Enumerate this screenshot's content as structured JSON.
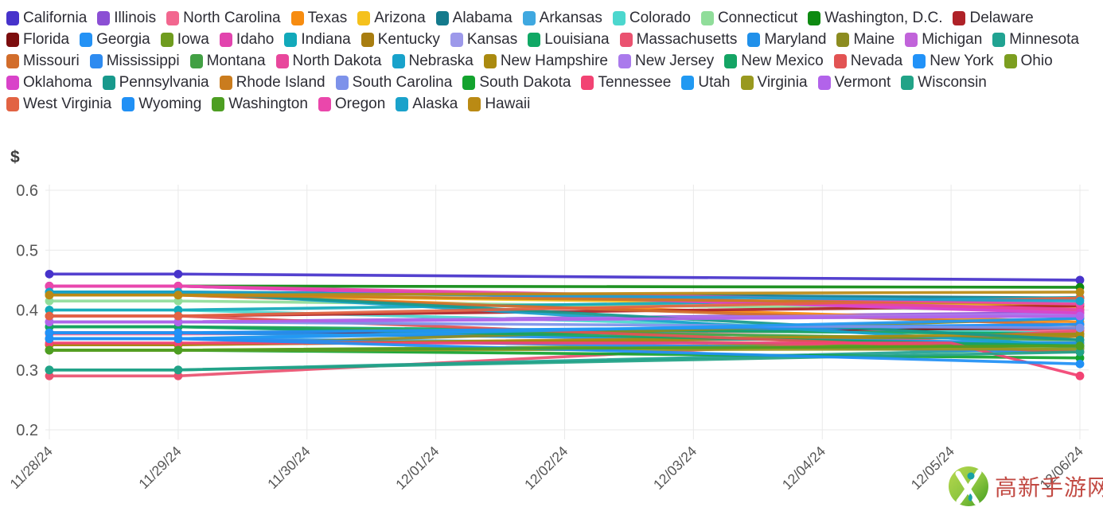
{
  "y_axis": {
    "title": "$",
    "tick_labels": [
      "0.6",
      "0.5",
      "0.4",
      "0.3",
      "0.2"
    ],
    "tick_values": [
      0.6,
      0.5,
      0.4,
      0.3,
      0.2
    ],
    "min": 0.2,
    "max": 0.6
  },
  "x_axis": {
    "labels": [
      "11/28/24",
      "11/29/24",
      "11/30/24",
      "12/01/24",
      "12/02/24",
      "12/03/24",
      "12/04/24",
      "12/05/24",
      "12/06/24"
    ]
  },
  "watermark": {
    "text": "高新手游网",
    "logo_green_light": "#a6cf3e",
    "logo_green_dark": "#4ba318",
    "logo_teal": "#18a1a5",
    "text_color": "#c24b44"
  },
  "chart_data": {
    "type": "line",
    "title": "",
    "xlabel": "",
    "ylabel": "$",
    "x": [
      "11/28/24",
      "11/29/24",
      "11/30/24",
      "12/01/24",
      "12/02/24",
      "12/03/24",
      "12/04/24",
      "12/05/24",
      "12/06/24"
    ],
    "ylim": [
      0.2,
      0.6
    ],
    "grid": true,
    "legend_position": "top",
    "marker_indices": [
      0,
      1,
      8
    ],
    "series": [
      {
        "name": "California",
        "color": "#4733cb",
        "points": [
          [
            0,
            0.46
          ],
          [
            1,
            0.46
          ],
          [
            8,
            0.45
          ]
        ]
      },
      {
        "name": "Illinois",
        "color": "#8b4fd4",
        "points": [
          [
            0,
            0.38
          ],
          [
            1,
            0.38
          ],
          [
            8,
            0.396
          ]
        ]
      },
      {
        "name": "North Carolina",
        "color": "#f2678f",
        "points": [
          [
            0,
            0.36
          ],
          [
            1,
            0.36
          ],
          [
            8,
            0.366
          ]
        ]
      },
      {
        "name": "Texas",
        "color": "#f78c10",
        "points": [
          [
            0,
            0.425
          ],
          [
            1,
            0.425
          ],
          [
            8,
            0.38
          ]
        ]
      },
      {
        "name": "Arizona",
        "color": "#f5c11c",
        "points": [
          [
            0,
            0.425
          ],
          [
            1,
            0.425
          ],
          [
            8,
            0.405
          ]
        ]
      },
      {
        "name": "Alabama",
        "color": "#147a8c",
        "points": [
          [
            0,
            0.43
          ],
          [
            1,
            0.43
          ],
          [
            8,
            0.42
          ]
        ]
      },
      {
        "name": "Arkansas",
        "color": "#3fa8e0",
        "points": [
          [
            0,
            0.352
          ],
          [
            1,
            0.352
          ],
          [
            8,
            0.34
          ]
        ]
      },
      {
        "name": "Colorado",
        "color": "#4cd7ce",
        "points": [
          [
            0,
            0.4
          ],
          [
            1,
            0.4
          ],
          [
            8,
            0.36
          ]
        ]
      },
      {
        "name": "Connecticut",
        "color": "#90dd9a",
        "points": [
          [
            0,
            0.415
          ],
          [
            1,
            0.415
          ],
          [
            8,
            0.4
          ]
        ]
      },
      {
        "name": "Washington, D.C.",
        "color": "#0e8a12",
        "points": [
          [
            0,
            0.44
          ],
          [
            1,
            0.44
          ],
          [
            8,
            0.438
          ]
        ]
      },
      {
        "name": "Delaware",
        "color": "#af2228",
        "points": [
          [
            0,
            0.39
          ],
          [
            1,
            0.39
          ],
          [
            8,
            0.407
          ]
        ]
      },
      {
        "name": "Florida",
        "color": "#7c0d0e",
        "points": [
          [
            0,
            0.362
          ],
          [
            1,
            0.362
          ],
          [
            8,
            0.37
          ]
        ]
      },
      {
        "name": "Georgia",
        "color": "#2492f5",
        "points": [
          [
            0,
            0.352
          ],
          [
            1,
            0.352
          ],
          [
            8,
            0.376
          ]
        ]
      },
      {
        "name": "Iowa",
        "color": "#6f9c1f",
        "points": [
          [
            0,
            0.333
          ],
          [
            1,
            0.333
          ],
          [
            8,
            0.345
          ]
        ]
      },
      {
        "name": "Idaho",
        "color": "#e244ae",
        "points": [
          [
            0,
            0.44
          ],
          [
            1,
            0.44
          ],
          [
            8,
            0.401
          ]
        ]
      },
      {
        "name": "Indiana",
        "color": "#12a9ba",
        "points": [
          [
            0,
            0.4
          ],
          [
            1,
            0.4
          ],
          [
            8,
            0.421
          ]
        ]
      },
      {
        "name": "Kentucky",
        "color": "#a87d10",
        "points": [
          [
            0,
            0.342
          ],
          [
            1,
            0.342
          ],
          [
            8,
            0.356
          ]
        ]
      },
      {
        "name": "Kansas",
        "color": "#9d99ea",
        "points": [
          [
            0,
            0.38
          ],
          [
            1,
            0.38
          ],
          [
            8,
            0.39
          ]
        ]
      },
      {
        "name": "Louisiana",
        "color": "#10a865",
        "points": [
          [
            0,
            0.372
          ],
          [
            1,
            0.372
          ],
          [
            8,
            0.36
          ]
        ]
      },
      {
        "name": "Massachusetts",
        "color": "#ea5270",
        "points": [
          [
            0,
            0.29
          ],
          [
            1,
            0.29
          ],
          [
            8,
            0.365
          ]
        ]
      },
      {
        "name": "Maryland",
        "color": "#2090ea",
        "points": [
          [
            0,
            0.362
          ],
          [
            1,
            0.362
          ],
          [
            8,
            0.345
          ]
        ]
      },
      {
        "name": "Maine",
        "color": "#8c8c20",
        "points": [
          [
            0,
            0.342
          ],
          [
            1,
            0.342
          ],
          [
            8,
            0.386
          ]
        ]
      },
      {
        "name": "Michigan",
        "color": "#c163da",
        "points": [
          [
            0,
            0.44
          ],
          [
            1,
            0.44
          ],
          [
            8,
            0.396
          ]
        ]
      },
      {
        "name": "Minnesota",
        "color": "#21a392",
        "points": [
          [
            0,
            0.3
          ],
          [
            1,
            0.3
          ],
          [
            8,
            0.336
          ]
        ]
      },
      {
        "name": "Missouri",
        "color": "#d26d2b",
        "points": [
          [
            0,
            0.425
          ],
          [
            1,
            0.425
          ],
          [
            8,
            0.375
          ]
        ]
      },
      {
        "name": "Mississippi",
        "color": "#2e8bf0",
        "points": [
          [
            0,
            0.352
          ],
          [
            1,
            0.352
          ],
          [
            8,
            0.33
          ]
        ]
      },
      {
        "name": "Montana",
        "color": "#42a044",
        "points": [
          [
            0,
            0.372
          ],
          [
            1,
            0.372
          ],
          [
            8,
            0.35
          ]
        ]
      },
      {
        "name": "North Dakota",
        "color": "#e8479c",
        "points": [
          [
            0,
            0.44
          ],
          [
            1,
            0.44
          ],
          [
            8,
            0.4
          ]
        ]
      },
      {
        "name": "Nebraska",
        "color": "#18a2cb",
        "points": [
          [
            0,
            0.43
          ],
          [
            1,
            0.43
          ],
          [
            8,
            0.34
          ]
        ]
      },
      {
        "name": "New Hampshire",
        "color": "#aa8a10",
        "points": [
          [
            0,
            0.342
          ],
          [
            1,
            0.342
          ],
          [
            8,
            0.36
          ]
        ]
      },
      {
        "name": "New Jersey",
        "color": "#aa7aec",
        "points": [
          [
            0,
            0.38
          ],
          [
            1,
            0.38
          ],
          [
            8,
            0.394
          ]
        ]
      },
      {
        "name": "New Mexico",
        "color": "#14a464",
        "points": [
          [
            0,
            0.372
          ],
          [
            1,
            0.372
          ],
          [
            8,
            0.34
          ]
        ]
      },
      {
        "name": "Nevada",
        "color": "#e25353",
        "points": [
          [
            0,
            0.39
          ],
          [
            1,
            0.39
          ],
          [
            8,
            0.33
          ]
        ]
      },
      {
        "name": "New York",
        "color": "#2192f8",
        "points": [
          [
            0,
            0.362
          ],
          [
            1,
            0.362
          ],
          [
            8,
            0.376
          ]
        ]
      },
      {
        "name": "Ohio",
        "color": "#7c9e20",
        "points": [
          [
            0,
            0.333
          ],
          [
            1,
            0.333
          ],
          [
            8,
            0.34
          ]
        ]
      },
      {
        "name": "Oklahoma",
        "color": "#d943c9",
        "points": [
          [
            0,
            0.44
          ],
          [
            1,
            0.44
          ],
          [
            8,
            0.395
          ]
        ]
      },
      {
        "name": "Pennsylvania",
        "color": "#18998c",
        "points": [
          [
            0,
            0.43
          ],
          [
            1,
            0.43
          ],
          [
            8,
            0.35
          ]
        ]
      },
      {
        "name": "Rhode Island",
        "color": "#ca7c1e",
        "points": [
          [
            0,
            0.425
          ],
          [
            1,
            0.425
          ],
          [
            8,
            0.41
          ]
        ]
      },
      {
        "name": "South Carolina",
        "color": "#7d92ea",
        "points": [
          [
            0,
            0.38
          ],
          [
            1,
            0.38
          ],
          [
            8,
            0.37
          ]
        ]
      },
      {
        "name": "South Dakota",
        "color": "#13a32e",
        "points": [
          [
            0,
            0.333
          ],
          [
            1,
            0.333
          ],
          [
            8,
            0.32
          ]
        ]
      },
      {
        "name": "Tennessee",
        "color": "#f24373",
        "points": [
          [
            0,
            0.345
          ],
          [
            1,
            0.345
          ],
          [
            7,
            0.345
          ],
          [
            8,
            0.29
          ]
        ]
      },
      {
        "name": "Utah",
        "color": "#2199f2",
        "points": [
          [
            0,
            0.352
          ],
          [
            1,
            0.352
          ],
          [
            8,
            0.386
          ]
        ]
      },
      {
        "name": "Virginia",
        "color": "#99991f",
        "points": [
          [
            0,
            0.333
          ],
          [
            1,
            0.333
          ],
          [
            8,
            0.335
          ]
        ]
      },
      {
        "name": "Vermont",
        "color": "#b263ea",
        "points": [
          [
            0,
            0.38
          ],
          [
            1,
            0.38
          ],
          [
            8,
            0.39
          ]
        ]
      },
      {
        "name": "Wisconsin",
        "color": "#21a387",
        "points": [
          [
            0,
            0.3
          ],
          [
            1,
            0.3
          ],
          [
            8,
            0.33
          ]
        ]
      },
      {
        "name": "West Virginia",
        "color": "#e26343",
        "points": [
          [
            0,
            0.39
          ],
          [
            1,
            0.39
          ],
          [
            8,
            0.42
          ]
        ]
      },
      {
        "name": "Wyoming",
        "color": "#2090f5",
        "points": [
          [
            0,
            0.352
          ],
          [
            1,
            0.352
          ],
          [
            8,
            0.31
          ]
        ]
      },
      {
        "name": "Washington",
        "color": "#4d9e22",
        "points": [
          [
            0,
            0.333
          ],
          [
            1,
            0.333
          ],
          [
            8,
            0.34
          ]
        ]
      },
      {
        "name": "Oregon",
        "color": "#ea47ab",
        "points": [
          [
            0,
            0.44
          ],
          [
            1,
            0.44
          ],
          [
            8,
            0.41
          ]
        ]
      },
      {
        "name": "Alaska",
        "color": "#1aa2cb",
        "points": [
          [
            0,
            0.43
          ],
          [
            1,
            0.43
          ],
          [
            8,
            0.415
          ]
        ]
      },
      {
        "name": "Hawaii",
        "color": "#ba8a14",
        "points": [
          [
            0,
            0.425
          ],
          [
            1,
            0.425
          ],
          [
            8,
            0.43
          ]
        ]
      }
    ]
  },
  "style": {
    "grid_color": "#e9e9e9",
    "tick_label_color": "#555555",
    "legend_text_color": "#2d2d35"
  }
}
